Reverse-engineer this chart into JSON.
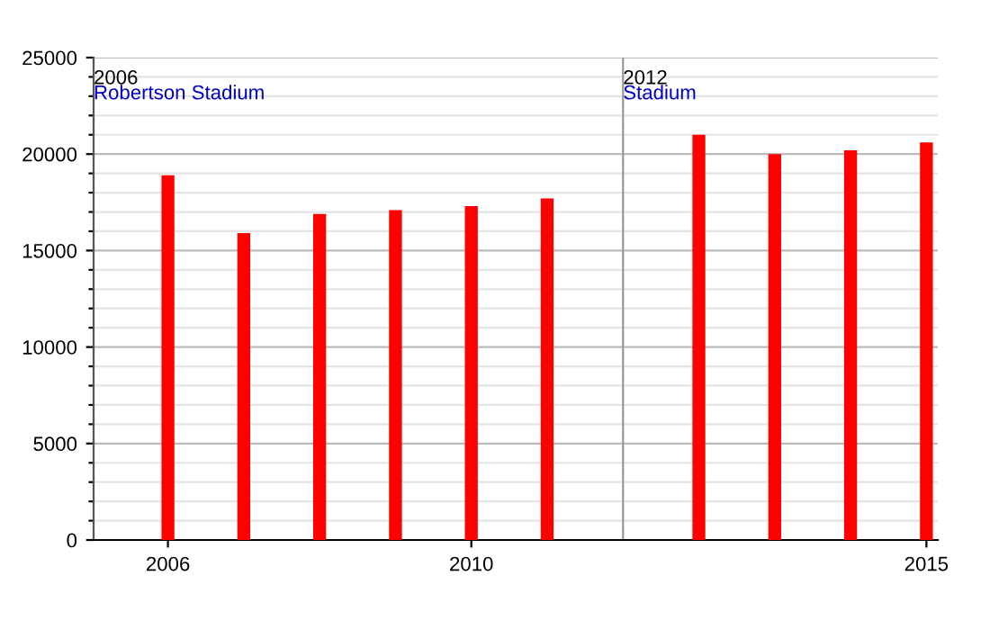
{
  "chart_data": {
    "type": "bar",
    "categories": [
      "2006",
      null,
      null,
      null,
      "2010",
      null,
      null,
      null,
      null,
      null,
      "2015"
    ],
    "series": [
      {
        "color": "#ff0000",
        "values": [
          18900,
          15900,
          16900,
          17100,
          17300,
          17700,
          null,
          21000,
          20000,
          20200,
          20600
        ]
      }
    ],
    "ylim": [
      0,
      25000
    ],
    "yticks": [
      0,
      {
        "value": 1000,
        "label": null
      },
      {
        "value": 2000,
        "label": null
      },
      {
        "value": 3000,
        "label": null
      },
      {
        "value": 4000,
        "label": null
      },
      5000,
      {
        "value": 6000,
        "label": null
      },
      {
        "value": 7000,
        "label": null
      },
      {
        "value": 8000,
        "label": null
      },
      {
        "value": 9000,
        "label": null
      },
      10000,
      {
        "value": 11000,
        "label": null
      },
      {
        "value": 12000,
        "label": null
      },
      {
        "value": 13000,
        "label": null
      },
      {
        "value": 14000,
        "label": null
      },
      15000,
      {
        "value": 16000,
        "label": null
      },
      {
        "value": 17000,
        "label": null
      },
      {
        "value": 18000,
        "label": null
      },
      {
        "value": 19000,
        "label": null
      },
      20000,
      {
        "value": 21000,
        "label": null
      },
      {
        "value": 22000,
        "label": null
      },
      {
        "value": 23000,
        "label": null
      },
      {
        "value": 24000,
        "label": null
      },
      25000
    ],
    "grid": "y",
    "annotations": [
      "2006",
      "Robertson Stadium",
      "2012",
      "Stadium"
    ]
  }
}
